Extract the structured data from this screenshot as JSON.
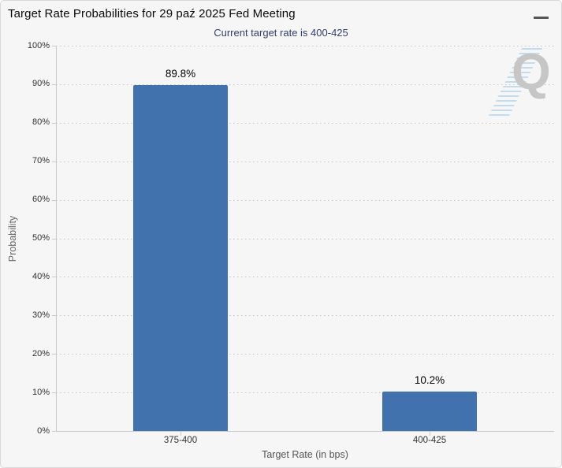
{
  "header": {
    "title": "Target Rate Probabilities for 29 paź 2025 Fed Meeting",
    "subtitle": "Current target rate is 400-425"
  },
  "icons": {
    "menu": "hamburger-menu"
  },
  "watermark": {
    "letter": "Q"
  },
  "colors": {
    "bar": "#4272ad",
    "subtitle": "#31406e",
    "background": "#f6f6f6",
    "grid": "#c5c5c5",
    "axis": "#c9c9c9"
  },
  "chart_data": {
    "type": "bar",
    "title": "Target Rate Probabilities for 29 paź 2025 Fed Meeting",
    "subtitle": "Current target rate is 400-425",
    "categories": [
      "375-400",
      "400-425"
    ],
    "values": [
      89.8,
      10.2
    ],
    "data_labels": [
      "89.8%",
      "10.2%"
    ],
    "xlabel": "Target Rate (in bps)",
    "ylabel": "Probability",
    "ylim": [
      0,
      100
    ],
    "ytick_step": 10,
    "ytick_suffix": "%",
    "grid": "dotted",
    "legend": "none",
    "bar_color": "#4272ad"
  }
}
